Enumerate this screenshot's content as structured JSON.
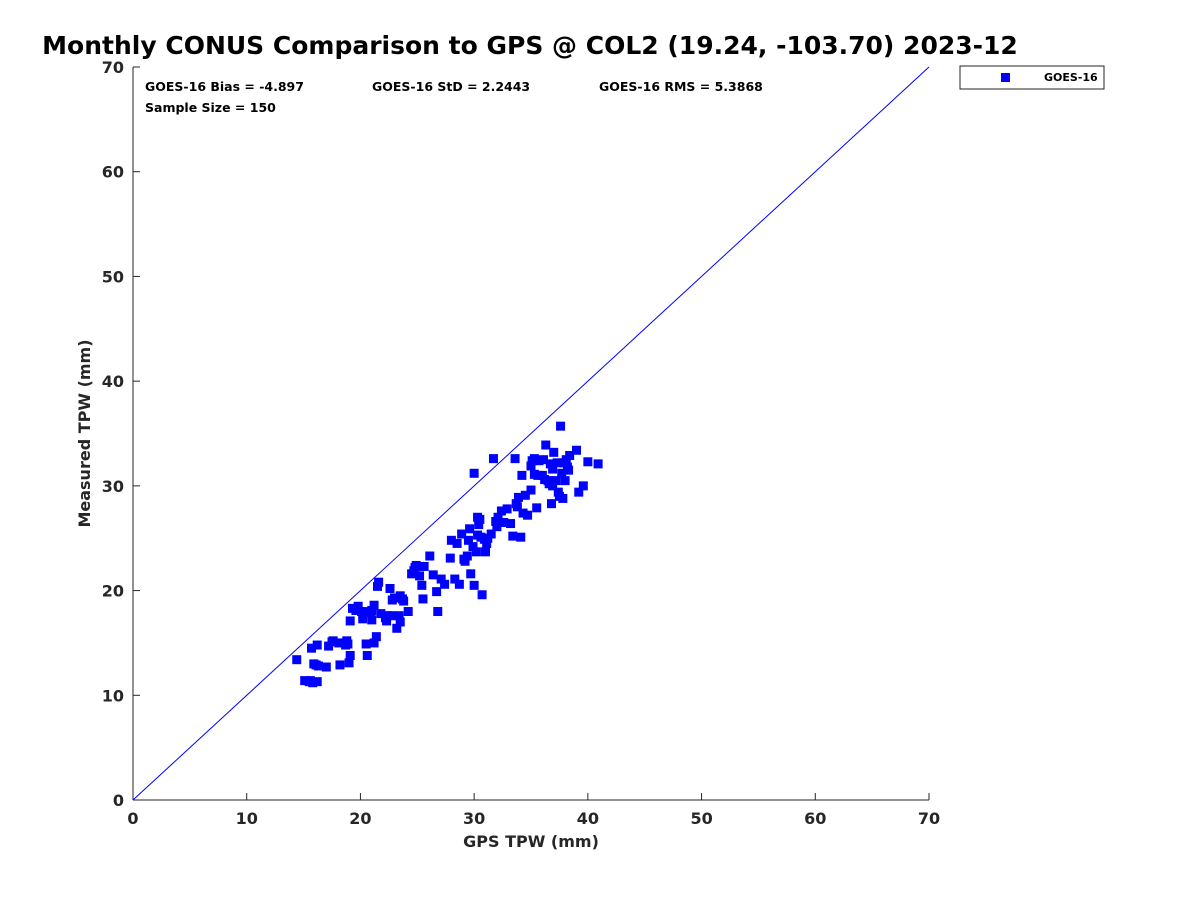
{
  "chart_data": {
    "type": "scatter",
    "title": "Monthly CONUS Comparison to GPS @ COL2 (19.24, -103.70) 2023-12",
    "xlabel": "GPS TPW (mm)",
    "ylabel": "Measured TPW (mm)",
    "xlim": [
      0,
      70
    ],
    "ylim": [
      0,
      70
    ],
    "xticks": [
      0,
      10,
      20,
      30,
      40,
      50,
      60,
      70
    ],
    "yticks": [
      0,
      10,
      20,
      30,
      40,
      50,
      60,
      70
    ],
    "grid": false,
    "legend_position": "outside top-right",
    "stats": {
      "bias": "GOES-16 Bias = -4.897",
      "std": "GOES-16 StD = 2.2443",
      "rms": "GOES-16 RMS = 5.3868",
      "sample": "Sample Size = 150"
    },
    "reference_line": {
      "from": [
        0,
        0
      ],
      "to": [
        70,
        70
      ],
      "color": "#0000ff"
    },
    "series": [
      {
        "name": "GOES-16",
        "color": "#0000ff",
        "marker": "square",
        "points": [
          [
            14.4,
            13.4
          ],
          [
            15.1,
            11.4
          ],
          [
            15.5,
            11.3
          ],
          [
            15.8,
            11.2
          ],
          [
            16.2,
            11.3
          ],
          [
            15.7,
            14.5
          ],
          [
            16.2,
            14.8
          ],
          [
            15.9,
            13.0
          ],
          [
            16.3,
            12.8
          ],
          [
            17.0,
            12.7
          ],
          [
            17.2,
            14.7
          ],
          [
            17.6,
            15.2
          ],
          [
            18.1,
            15.0
          ],
          [
            18.2,
            12.9
          ],
          [
            18.7,
            14.8
          ],
          [
            18.8,
            15.2
          ],
          [
            19.0,
            13.1
          ],
          [
            19.1,
            13.8
          ],
          [
            19.1,
            17.1
          ],
          [
            19.3,
            18.3
          ],
          [
            19.8,
            18.5
          ],
          [
            20.1,
            18.0
          ],
          [
            20.2,
            17.3
          ],
          [
            20.5,
            14.9
          ],
          [
            20.6,
            13.8
          ],
          [
            20.8,
            17.9
          ],
          [
            21.0,
            18.1
          ],
          [
            21.0,
            17.2
          ],
          [
            21.2,
            18.6
          ],
          [
            21.2,
            15.0
          ],
          [
            21.4,
            15.6
          ],
          [
            21.5,
            20.4
          ],
          [
            21.6,
            20.8
          ],
          [
            21.8,
            17.8
          ],
          [
            22.2,
            17.4
          ],
          [
            22.3,
            17.1
          ],
          [
            22.6,
            20.2
          ],
          [
            22.7,
            17.6
          ],
          [
            22.8,
            19.1
          ],
          [
            23.0,
            19.3
          ],
          [
            23.2,
            16.4
          ],
          [
            23.4,
            17.6
          ],
          [
            23.5,
            17.0
          ],
          [
            23.5,
            19.5
          ],
          [
            23.7,
            19.2
          ],
          [
            24.2,
            18.0
          ],
          [
            24.5,
            21.6
          ],
          [
            24.8,
            22.2
          ],
          [
            24.9,
            22.4
          ],
          [
            25.2,
            21.4
          ],
          [
            25.4,
            20.5
          ],
          [
            25.5,
            19.2
          ],
          [
            25.6,
            22.3
          ],
          [
            26.1,
            23.3
          ],
          [
            26.7,
            19.9
          ],
          [
            26.8,
            18.0
          ],
          [
            27.1,
            21.1
          ],
          [
            27.4,
            20.6
          ],
          [
            28.0,
            24.8
          ],
          [
            28.3,
            21.1
          ],
          [
            28.5,
            24.5
          ],
          [
            28.7,
            20.6
          ],
          [
            28.9,
            25.4
          ],
          [
            29.1,
            23.0
          ],
          [
            29.2,
            22.8
          ],
          [
            29.4,
            23.3
          ],
          [
            29.6,
            25.9
          ],
          [
            29.7,
            21.6
          ],
          [
            29.9,
            24.2
          ],
          [
            30.0,
            20.5
          ],
          [
            30.0,
            31.2
          ],
          [
            30.2,
            23.7
          ],
          [
            30.3,
            25.3
          ],
          [
            30.3,
            27.0
          ],
          [
            30.4,
            26.3
          ],
          [
            30.6,
            25.1
          ],
          [
            30.7,
            19.6
          ],
          [
            30.9,
            24.9
          ],
          [
            31.0,
            23.7
          ],
          [
            31.1,
            24.5
          ],
          [
            31.2,
            25.0
          ],
          [
            31.7,
            32.6
          ],
          [
            31.9,
            26.6
          ],
          [
            32.0,
            26.1
          ],
          [
            32.1,
            27.0
          ],
          [
            32.4,
            27.6
          ],
          [
            32.6,
            26.5
          ],
          [
            33.2,
            26.4
          ],
          [
            33.4,
            25.2
          ],
          [
            33.6,
            32.6
          ],
          [
            33.7,
            28.3
          ],
          [
            33.8,
            28.0
          ],
          [
            34.1,
            25.1
          ],
          [
            34.2,
            31.0
          ],
          [
            34.3,
            27.4
          ],
          [
            34.5,
            29.1
          ],
          [
            34.7,
            27.2
          ],
          [
            35.0,
            31.9
          ],
          [
            35.1,
            32.4
          ],
          [
            35.3,
            32.6
          ],
          [
            35.3,
            31.1
          ],
          [
            35.5,
            27.9
          ],
          [
            35.6,
            31.0
          ],
          [
            35.7,
            32.4
          ],
          [
            36.1,
            32.5
          ],
          [
            36.2,
            30.6
          ],
          [
            36.3,
            33.9
          ],
          [
            36.5,
            30.5
          ],
          [
            36.6,
            30.2
          ],
          [
            36.7,
            32.1
          ],
          [
            36.8,
            28.3
          ],
          [
            36.9,
            30.0
          ],
          [
            37.0,
            33.2
          ],
          [
            37.2,
            30.5
          ],
          [
            37.3,
            32.2
          ],
          [
            37.4,
            29.4
          ],
          [
            37.6,
            35.7
          ],
          [
            37.7,
            31.2
          ],
          [
            37.8,
            28.8
          ],
          [
            37.9,
            32.2
          ],
          [
            38.0,
            30.5
          ],
          [
            38.1,
            32.5
          ],
          [
            38.3,
            31.5
          ],
          [
            38.4,
            32.9
          ],
          [
            39.2,
            29.4
          ],
          [
            39.6,
            30.0
          ],
          [
            40.0,
            32.3
          ],
          [
            40.9,
            32.1
          ],
          [
            15.6,
            11.4
          ],
          [
            16.1,
            12.9
          ],
          [
            17.5,
            15.1
          ],
          [
            18.9,
            14.9
          ],
          [
            19.6,
            18.1
          ],
          [
            20.9,
            18.0
          ],
          [
            22.4,
            17.6
          ],
          [
            23.8,
            19.0
          ],
          [
            24.7,
            21.9
          ],
          [
            26.4,
            21.5
          ],
          [
            27.9,
            23.1
          ],
          [
            29.5,
            24.8
          ],
          [
            30.5,
            26.8
          ],
          [
            31.5,
            25.4
          ],
          [
            32.9,
            27.8
          ],
          [
            33.9,
            28.9
          ],
          [
            35.0,
            29.6
          ],
          [
            36.0,
            31.0
          ],
          [
            36.9,
            31.6
          ],
          [
            37.5,
            29.0
          ],
          [
            38.2,
            31.8
          ],
          [
            39.0,
            33.4
          ]
        ]
      }
    ]
  }
}
